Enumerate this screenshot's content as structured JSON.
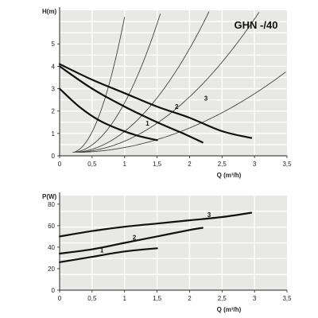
{
  "chart_data": [
    {
      "type": "line",
      "title": "GHN -/40",
      "ylabel": "H(m)",
      "xlabel": "Q (m³/h)",
      "xlim": [
        0,
        3.5
      ],
      "ylim": [
        0,
        6.5
      ],
      "x_ticks": [
        "0",
        "0,5",
        "1",
        "1,5",
        "2",
        "2,5",
        "3",
        "3,5"
      ],
      "y_ticks": [
        "0",
        "1",
        "2",
        "3",
        "4",
        "5"
      ],
      "grid": true,
      "colors": {
        "background": "#e8e8e4",
        "grid": "#ffffff",
        "curve": "#111111",
        "system_curve": "#444444"
      },
      "series": [
        {
          "name": "1",
          "points": [
            [
              0,
              3.0
            ],
            [
              0.3,
              2.2
            ],
            [
              0.6,
              1.6
            ],
            [
              0.9,
              1.2
            ],
            [
              1.2,
              0.9
            ],
            [
              1.5,
              0.7
            ]
          ]
        },
        {
          "name": "2",
          "points": [
            [
              0,
              4.0
            ],
            [
              0.5,
              3.0
            ],
            [
              1.0,
              2.2
            ],
            [
              1.5,
              1.5
            ],
            [
              1.9,
              1.0
            ],
            [
              2.2,
              0.6
            ]
          ]
        },
        {
          "name": "3",
          "points": [
            [
              0,
              4.1
            ],
            [
              0.5,
              3.4
            ],
            [
              1.0,
              2.8
            ],
            [
              1.5,
              2.2
            ],
            [
              2.0,
              1.7
            ],
            [
              2.5,
              1.1
            ],
            [
              2.95,
              0.8
            ]
          ]
        }
      ],
      "system_curves": [
        {
          "k": 9.0
        },
        {
          "k": 3.3
        },
        {
          "k": 1.4
        },
        {
          "k": 0.75
        },
        {
          "k": 0.33
        }
      ]
    },
    {
      "type": "line",
      "ylabel": "P(W)",
      "xlabel": "Q (m³/h)",
      "xlim": [
        0,
        3.5
      ],
      "ylim": [
        0,
        88
      ],
      "x_ticks": [
        "0",
        "0,5",
        "1",
        "1,5",
        "2",
        "2,5",
        "3",
        "3,5"
      ],
      "y_ticks": [
        "0",
        "20",
        "40",
        "60",
        "80"
      ],
      "grid": true,
      "colors": {
        "background": "#e8e8e4",
        "grid": "#ffffff",
        "curve": "#111111"
      },
      "series": [
        {
          "name": "1",
          "points": [
            [
              0,
              26
            ],
            [
              0.5,
              31
            ],
            [
              1.0,
              36
            ],
            [
              1.5,
              39
            ]
          ]
        },
        {
          "name": "2",
          "points": [
            [
              0,
              34
            ],
            [
              0.5,
              38
            ],
            [
              1.0,
              44
            ],
            [
              1.5,
              50
            ],
            [
              2.0,
              56
            ],
            [
              2.2,
              58
            ]
          ]
        },
        {
          "name": "3",
          "points": [
            [
              0,
              50
            ],
            [
              0.5,
              55
            ],
            [
              1.0,
              59
            ],
            [
              1.5,
              62
            ],
            [
              2.0,
              65
            ],
            [
              2.5,
              68
            ],
            [
              2.95,
              72
            ]
          ]
        }
      ]
    }
  ]
}
